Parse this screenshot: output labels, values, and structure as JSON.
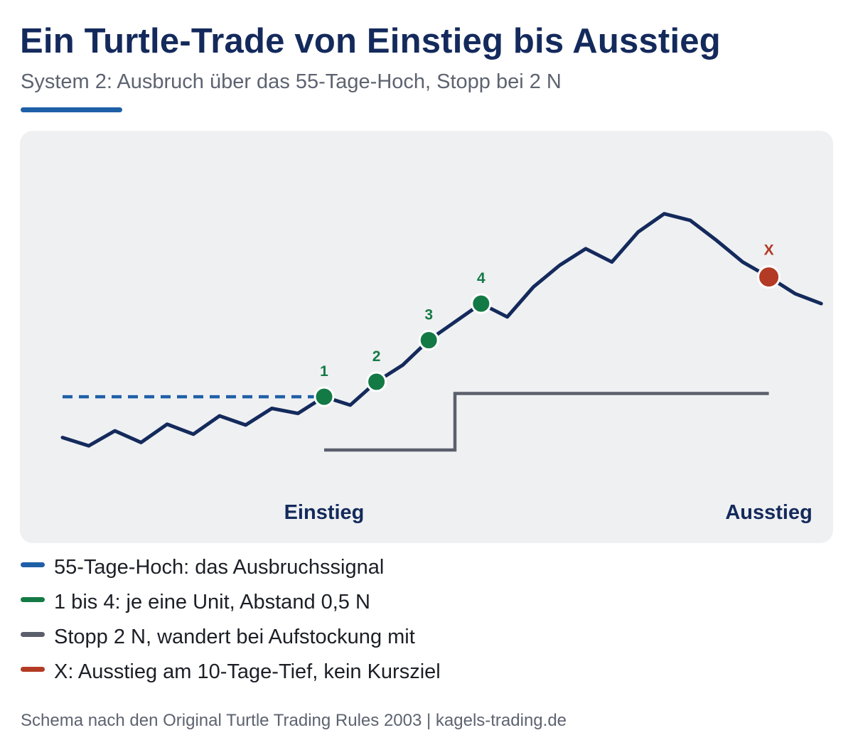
{
  "header": {
    "title": "Ein Turtle-Trade von Einstieg bis Ausstieg",
    "subtitle": "System 2: Ausbruch über das 55-Tage-Hoch, Stopp bei 2 N"
  },
  "colors": {
    "price": "#142a5c",
    "breakout": "#1f5fa8",
    "units": "#147a45",
    "stop": "#5b5f6c",
    "exit": "#b33a24",
    "panel": "#eff0f2"
  },
  "diagram": {
    "price_path": [
      [
        0,
        1.5
      ],
      [
        1,
        0.5
      ],
      [
        2,
        2.3
      ],
      [
        3,
        0.9
      ],
      [
        4,
        3.1
      ],
      [
        5,
        1.9
      ],
      [
        6,
        4.1
      ],
      [
        7,
        3.0
      ],
      [
        8,
        5.0
      ],
      [
        9,
        4.4
      ],
      [
        10,
        6.4
      ],
      [
        11,
        5.4
      ],
      [
        12,
        8.2
      ],
      [
        13,
        10.2
      ],
      [
        14,
        13.2
      ],
      [
        15,
        15.4
      ],
      [
        16,
        17.6
      ],
      [
        17,
        16.0
      ],
      [
        18,
        19.6
      ],
      [
        19,
        22.2
      ],
      [
        20,
        24.2
      ],
      [
        21,
        22.6
      ],
      [
        22,
        26.2
      ],
      [
        23,
        28.4
      ],
      [
        24,
        27.6
      ],
      [
        25,
        25.2
      ],
      [
        26,
        22.6
      ],
      [
        27,
        20.8
      ],
      [
        28,
        18.8
      ],
      [
        29,
        17.6
      ]
    ],
    "breakout_level": 6.4,
    "stop_steps": [
      {
        "from": 10,
        "to": 15,
        "level": 0.0
      },
      {
        "from": 15,
        "to": 27,
        "level": 6.8
      }
    ],
    "units": [
      {
        "label": "1",
        "x": 10,
        "y": 6.4
      },
      {
        "label": "2",
        "x": 12,
        "y": 8.2
      },
      {
        "label": "3",
        "x": 14,
        "y": 13.2
      },
      {
        "label": "4",
        "x": 16,
        "y": 17.6
      }
    ],
    "exit": {
      "label": "X",
      "x": 27,
      "y": 20.8
    },
    "entry_label": "Einstieg",
    "exit_label": "Ausstieg"
  },
  "legend": [
    {
      "color": "#1f5fa8",
      "label": "55-Tage-Hoch: das Ausbruchssignal"
    },
    {
      "color": "#147a45",
      "label": "1 bis 4: je eine Unit, Abstand 0,5 N"
    },
    {
      "color": "#5b5f6c",
      "label": "Stopp 2 N, wandert bei Aufstockung mit"
    },
    {
      "color": "#b33a24",
      "label": "X: Ausstieg am 10-Tage-Tief, kein Kursziel"
    }
  ],
  "footer": "Schema nach den Original Turtle Trading Rules 2003 | kagels-trading.de"
}
